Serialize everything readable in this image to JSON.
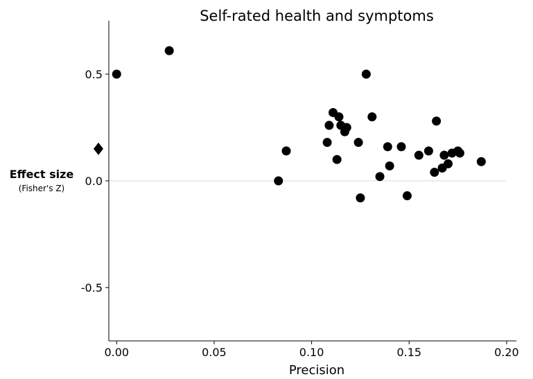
{
  "chart_data": {
    "type": "scatter",
    "title": "Self-rated health and symptoms",
    "xlabel": "Precision",
    "ylabel": "Effect size",
    "ylabel_sub": "(Fisher's Z)",
    "xlim": [
      -0.004,
      0.205
    ],
    "ylim": [
      -0.75,
      0.75
    ],
    "x_ticks": [
      0.0,
      0.05,
      0.1,
      0.15,
      0.2
    ],
    "x_tick_labels": [
      "0.00",
      "0.05",
      "0.10",
      "0.15",
      "0.20"
    ],
    "y_ticks": [
      0.5,
      0.0,
      -0.5
    ],
    "y_tick_labels": [
      "0.5",
      "0.0",
      "-0.5"
    ],
    "reference_line_y": 0.0,
    "grid": false,
    "summary_estimate": {
      "marker": "diamond",
      "y": 0.15
    },
    "series": [
      {
        "marker": "circle",
        "points": [
          {
            "x": 0.0,
            "y": 0.5
          },
          {
            "x": 0.027,
            "y": 0.61
          },
          {
            "x": 0.083,
            "y": 0.0
          },
          {
            "x": 0.087,
            "y": 0.14
          },
          {
            "x": 0.108,
            "y": 0.18
          },
          {
            "x": 0.109,
            "y": 0.26
          },
          {
            "x": 0.111,
            "y": 0.32
          },
          {
            "x": 0.113,
            "y": 0.1
          },
          {
            "x": 0.114,
            "y": 0.3
          },
          {
            "x": 0.115,
            "y": 0.26
          },
          {
            "x": 0.117,
            "y": 0.23
          },
          {
            "x": 0.118,
            "y": 0.25
          },
          {
            "x": 0.124,
            "y": 0.18
          },
          {
            "x": 0.125,
            "y": -0.08
          },
          {
            "x": 0.128,
            "y": 0.5
          },
          {
            "x": 0.131,
            "y": 0.3
          },
          {
            "x": 0.135,
            "y": 0.02
          },
          {
            "x": 0.139,
            "y": 0.16
          },
          {
            "x": 0.14,
            "y": 0.07
          },
          {
            "x": 0.146,
            "y": 0.16
          },
          {
            "x": 0.149,
            "y": -0.07
          },
          {
            "x": 0.155,
            "y": 0.12
          },
          {
            "x": 0.16,
            "y": 0.14
          },
          {
            "x": 0.163,
            "y": 0.04
          },
          {
            "x": 0.164,
            "y": 0.28
          },
          {
            "x": 0.167,
            "y": 0.06
          },
          {
            "x": 0.168,
            "y": 0.12
          },
          {
            "x": 0.17,
            "y": 0.08
          },
          {
            "x": 0.172,
            "y": 0.13
          },
          {
            "x": 0.175,
            "y": 0.14
          },
          {
            "x": 0.176,
            "y": 0.13
          },
          {
            "x": 0.187,
            "y": 0.09
          }
        ]
      }
    ]
  }
}
